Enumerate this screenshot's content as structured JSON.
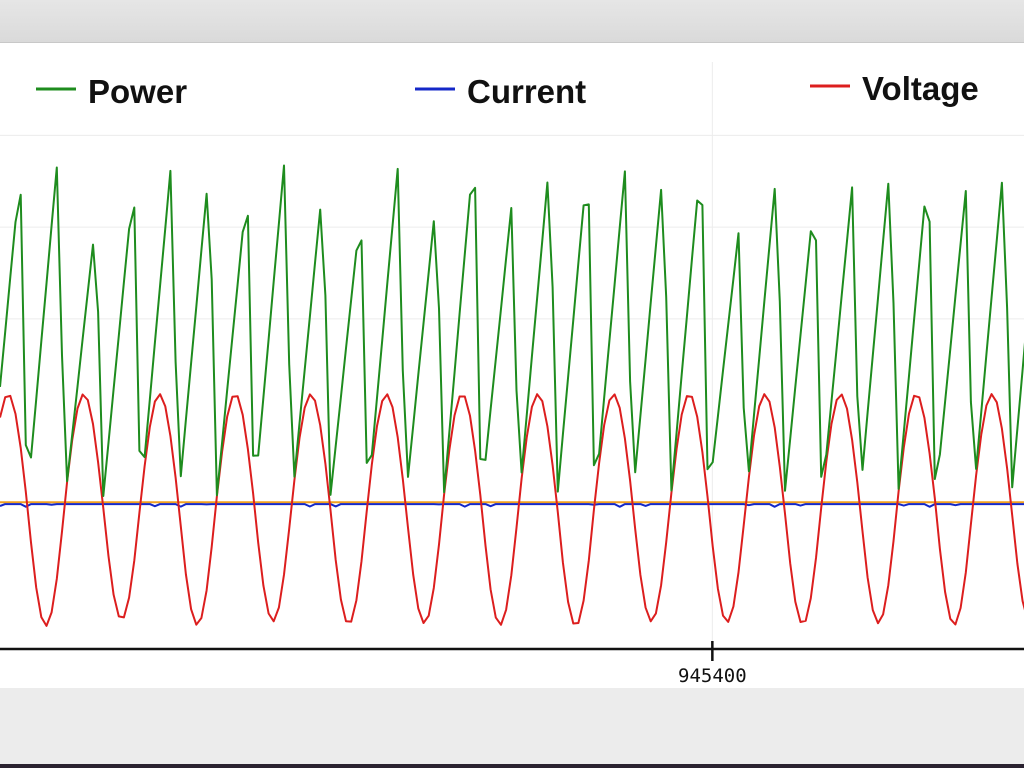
{
  "chart_data": {
    "type": "line",
    "xlabel": "",
    "ylabel": "",
    "x_range": [
      945240,
      945470
    ],
    "y_range": [
      -160,
      480
    ],
    "grid": true,
    "legend_placement": "top",
    "x_ticks": [
      {
        "value": 945400,
        "label": "945400"
      }
    ],
    "reference_line": {
      "value": 0,
      "color": "#f0a020"
    },
    "series": [
      {
        "name": "Power",
        "color": "#1e8c1e"
      },
      {
        "name": "Current",
        "color": "#1428c8"
      },
      {
        "name": "Voltage",
        "color": "#dc1e1e"
      }
    ],
    "signal": {
      "x_start": 945240,
      "x_step": 1.16,
      "cycle_period": 17.0,
      "power_peak_values": [
        360,
        380,
        310,
        350,
        375,
        370,
        345,
        380,
        350,
        320,
        375,
        335,
        390,
        330,
        380,
        375,
        370,
        370,
        380,
        300,
        370,
        340,
        350,
        375,
        370,
        345,
        375,
        385,
        375,
        345,
        390,
        330,
        380,
        375
      ],
      "voltage_peak_values": [
        118,
        -135,
        118,
        -128,
        118,
        -134,
        118,
        -130,
        118,
        -133,
        118,
        -132,
        118,
        -134,
        118,
        -135,
        118,
        -130,
        118,
        -131,
        118,
        -133,
        118,
        -132,
        118,
        -134,
        118,
        -131,
        118,
        -135,
        118,
        -133,
        118,
        -132,
        118,
        -134,
        118,
        -131,
        118,
        -133,
        118,
        -132,
        118,
        -134,
        118,
        -130,
        118,
        -135,
        118,
        -132,
        118,
        -133,
        118,
        -134,
        118,
        -131,
        118,
        -132,
        118,
        -130,
        118,
        -133,
        118,
        -134,
        118,
        -131,
        118,
        -133
      ],
      "current_level": -2
    }
  }
}
